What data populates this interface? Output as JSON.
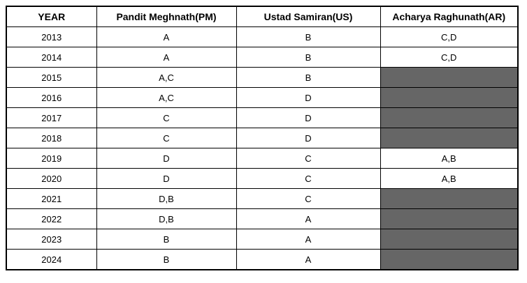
{
  "table": {
    "headers": [
      "YEAR",
      "Pandit Meghnath(PM)",
      "Ustad Samiran(US)",
      "Acharya Raghunath(AR)"
    ],
    "rows": [
      {
        "year": "2013",
        "pm": "A",
        "us": "B",
        "ar": "C,D",
        "shaded": false
      },
      {
        "year": "2014",
        "pm": "A",
        "us": "B",
        "ar": "C,D",
        "shaded": false
      },
      {
        "year": "2015",
        "pm": "A,C",
        "us": "B",
        "ar": "",
        "shaded": true
      },
      {
        "year": "2016",
        "pm": "A,C",
        "us": "D",
        "ar": "",
        "shaded": true
      },
      {
        "year": "2017",
        "pm": "C",
        "us": "D",
        "ar": "",
        "shaded": true
      },
      {
        "year": "2018",
        "pm": "C",
        "us": "D",
        "ar": "",
        "shaded": true
      },
      {
        "year": "2019",
        "pm": "D",
        "us": "C",
        "ar": "A,B",
        "shaded": false
      },
      {
        "year": "2020",
        "pm": "D",
        "us": "C",
        "ar": "A,B",
        "shaded": false
      },
      {
        "year": "2021",
        "pm": "D,B",
        "us": "C",
        "ar": "",
        "shaded": true
      },
      {
        "year": "2022",
        "pm": "D,B",
        "us": "A",
        "ar": "",
        "shaded": true
      },
      {
        "year": "2023",
        "pm": "B",
        "us": "A",
        "ar": "",
        "shaded": true
      },
      {
        "year": "2024",
        "pm": "B",
        "us": "A",
        "ar": "",
        "shaded": true
      }
    ],
    "colors": {
      "shaded_cell": "#666666",
      "border": "#000000",
      "background": "#ffffff"
    }
  }
}
